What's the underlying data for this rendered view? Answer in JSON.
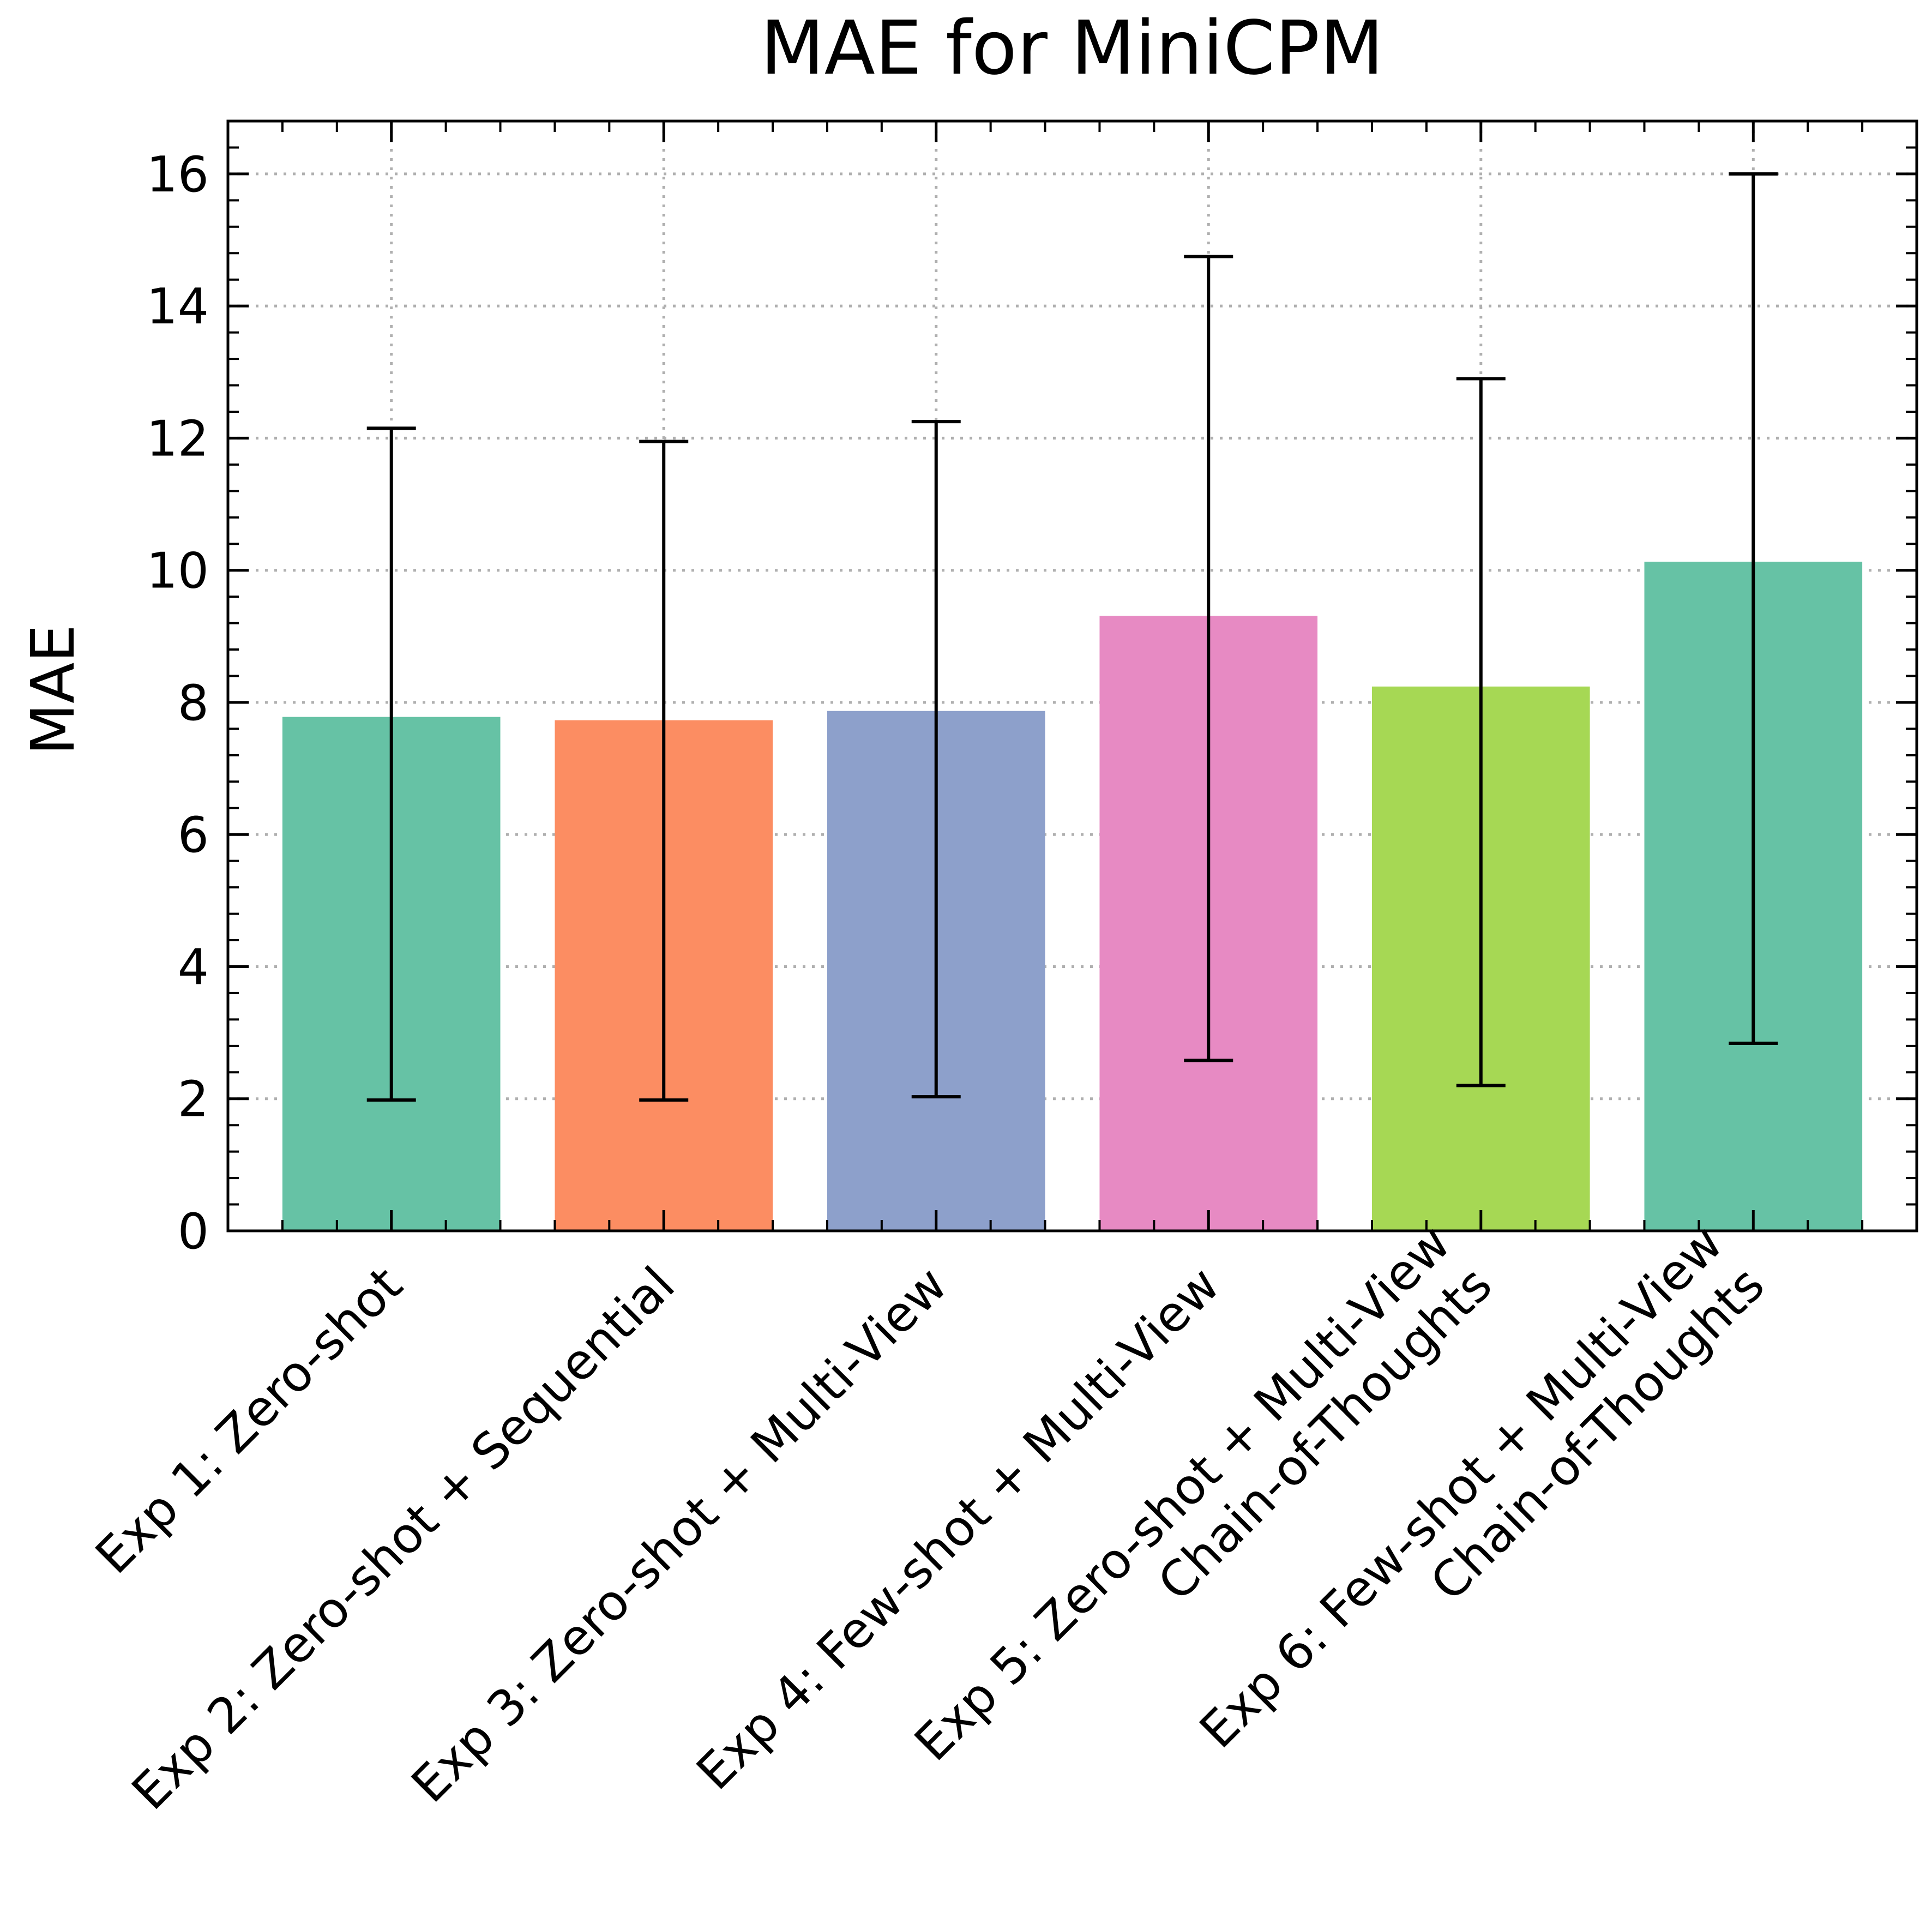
{
  "chart_data": {
    "type": "bar",
    "title": "MAE for MiniCPM",
    "xlabel": "",
    "ylabel": "MAE",
    "ylim": [
      0,
      16.8
    ],
    "yticks": [
      0,
      2,
      4,
      6,
      8,
      10,
      12,
      14,
      16
    ],
    "grid": true,
    "categories": [
      {
        "lines": [
          "Exp 1: Zero-shot"
        ]
      },
      {
        "lines": [
          "Exp 2: Zero-shot + Sequential"
        ]
      },
      {
        "lines": [
          "Exp 3: Zero-shot + Multi-View"
        ]
      },
      {
        "lines": [
          "Exp 4: Few-shot + Multi-View"
        ]
      },
      {
        "lines": [
          "Exp 5: Zero-shot + Multi-View",
          "Chain-of-Thoughts"
        ]
      },
      {
        "lines": [
          "Exp 6: Few-shot + Multi-View",
          "Chain-of-Thoughts"
        ]
      }
    ],
    "values": [
      7.78,
      7.73,
      7.87,
      9.31,
      8.24,
      10.13
    ],
    "error_low": [
      1.98,
      1.98,
      2.03,
      2.58,
      2.2,
      2.84
    ],
    "error_high": [
      12.15,
      11.95,
      12.25,
      14.75,
      12.9,
      16.0
    ],
    "colors": [
      "#66c2a5",
      "#fc8d62",
      "#8da0cb",
      "#e78ac3",
      "#a6d854",
      "#66c2a5"
    ]
  }
}
